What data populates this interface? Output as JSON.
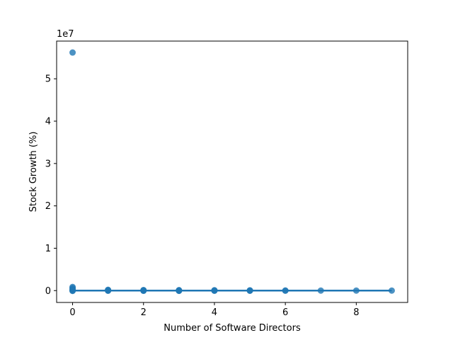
{
  "chart_data": {
    "type": "scatter",
    "title": "",
    "xlabel": "Number of Software Directors",
    "ylabel": "Stock Growth (%)",
    "y_offset_label": "1e7",
    "y_scale_factor": 10000000,
    "xlim": [
      -0.45,
      9.45
    ],
    "ylim": [
      -2800000,
      58900000
    ],
    "x_ticks": [
      0,
      2,
      4,
      6,
      8
    ],
    "y_ticks": [
      0,
      10000000,
      20000000,
      30000000,
      40000000,
      50000000
    ],
    "y_tick_labels": [
      "0",
      "1",
      "2",
      "3",
      "4",
      "5"
    ],
    "grid": false,
    "legend": "none",
    "series": [
      {
        "color": "#1f77b4",
        "points": [
          [
            0,
            56200000
          ],
          [
            0,
            850000
          ],
          [
            0,
            600000
          ],
          [
            0,
            350000
          ],
          [
            0,
            150000
          ],
          [
            0,
            0
          ],
          [
            0,
            -80000
          ],
          [
            1,
            180000
          ],
          [
            1,
            90000
          ],
          [
            1,
            20000
          ],
          [
            1,
            -40000
          ],
          [
            2,
            120000
          ],
          [
            2,
            50000
          ],
          [
            2,
            0
          ],
          [
            2,
            -50000
          ],
          [
            3,
            100000
          ],
          [
            3,
            40000
          ],
          [
            3,
            -20000
          ],
          [
            3,
            -60000
          ],
          [
            4,
            80000
          ],
          [
            4,
            20000
          ],
          [
            4,
            -40000
          ],
          [
            5,
            60000
          ],
          [
            5,
            10000
          ],
          [
            5,
            -40000
          ],
          [
            6,
            20000
          ],
          [
            6,
            -20000
          ],
          [
            7,
            0
          ],
          [
            8,
            0
          ],
          [
            9,
            0
          ]
        ]
      }
    ],
    "regression_line": {
      "color": "#1f77b4",
      "x": [
        0,
        9
      ],
      "y": [
        0,
        0
      ]
    }
  }
}
